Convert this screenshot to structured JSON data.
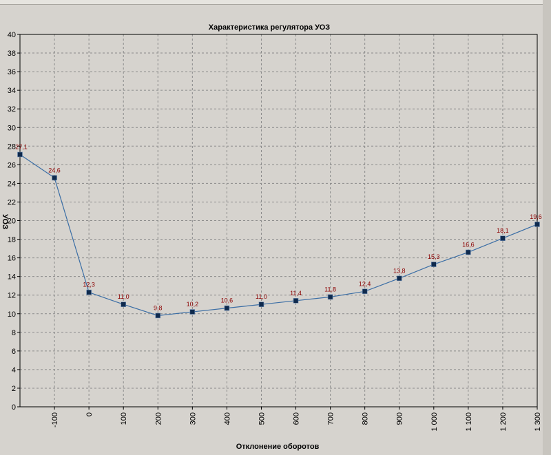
{
  "chart_data": {
    "type": "line",
    "title": "Характеристика регулятора УОЗ",
    "xlabel": "Отклонение оборотов",
    "ylabel": "УОЗ",
    "ylim": [
      0,
      40
    ],
    "y_ticks": [
      "0",
      "2",
      "4",
      "6",
      "8",
      "10",
      "12",
      "14",
      "16",
      "18",
      "20",
      "22",
      "24",
      "26",
      "28",
      "30",
      "32",
      "34",
      "36",
      "38",
      "40"
    ],
    "x_ticks": [
      "-100",
      "0",
      "100",
      "200",
      "300",
      "400",
      "500",
      "600",
      "700",
      "800",
      "900",
      "1 000",
      "1 100",
      "1 200",
      "1 300"
    ],
    "x": [
      -200,
      -100,
      0,
      100,
      200,
      300,
      400,
      500,
      600,
      700,
      800,
      900,
      1000,
      1100,
      1200,
      1300
    ],
    "values": [
      27.1,
      24.6,
      12.3,
      11.0,
      9.8,
      10.2,
      10.6,
      11.0,
      11.4,
      11.8,
      12.4,
      13.8,
      15.3,
      16.6,
      18.1,
      19.6
    ],
    "labels": [
      "27,1",
      "24,6",
      "12,3",
      "11,0",
      "9,8",
      "10,2",
      "10,6",
      "11,0",
      "11,4",
      "11,8",
      "12,4",
      "13,8",
      "15,3",
      "16,6",
      "18,1",
      "19,6"
    ],
    "grid": true,
    "colors": {
      "line": "#3b6ea5",
      "marker": "#0f2a4d",
      "value_label": "#8b0000",
      "background": "#d6d3ce"
    }
  }
}
